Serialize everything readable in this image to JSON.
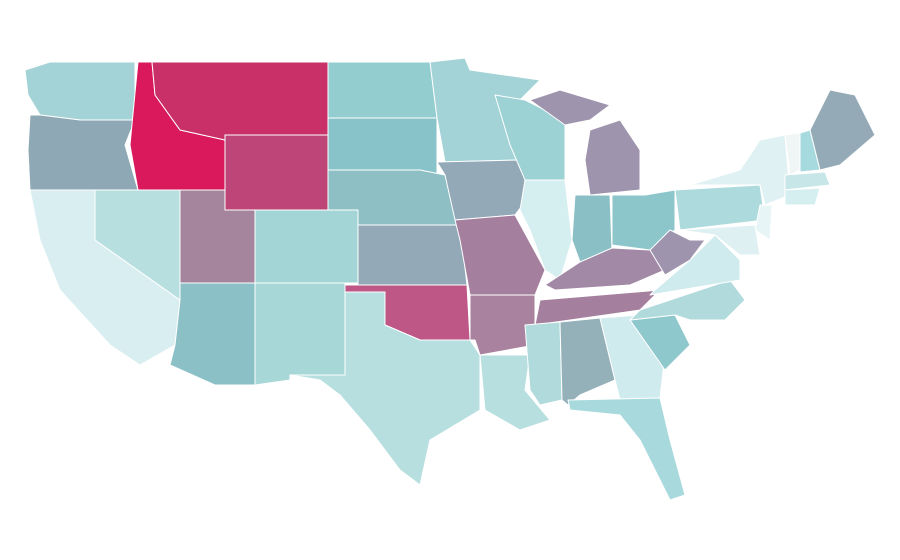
{
  "map": {
    "regions": [
      {
        "color": "#a3d3d6"
      },
      {
        "color": "#8fa8b5"
      },
      {
        "color": "#d8eef0"
      },
      {
        "color": "#b8dfe0"
      },
      {
        "color": "#d9195b"
      },
      {
        "color": "#c93068"
      },
      {
        "color": "#bd4577"
      },
      {
        "color": "#a5849e"
      },
      {
        "color": "#a3d4d6"
      },
      {
        "color": "#8ac0c6"
      },
      {
        "color": "#a8d7d8"
      },
      {
        "color": "#93cdd0"
      },
      {
        "color": "#88c3ca"
      },
      {
        "color": "#8dbfc4"
      },
      {
        "color": "#94a9b7"
      },
      {
        "color": "#be5686"
      },
      {
        "color": "#b8dfe0"
      },
      {
        "color": "#a3d3d6"
      },
      {
        "color": "#94a9b7"
      },
      {
        "color": "#a47f9e"
      },
      {
        "color": "#a8829e"
      },
      {
        "color": "#b8dfe0"
      },
      {
        "color": "#9dd2d5"
      },
      {
        "color": "#d5eef0"
      },
      {
        "color": "#9e94ad"
      },
      {
        "color": "#8bbfc6"
      },
      {
        "color": "#8cc6cb"
      },
      {
        "color": "#a28aa6"
      },
      {
        "color": "#a47f9e"
      },
      {
        "color": "#b0dadc"
      },
      {
        "color": "#94b0b8"
      },
      {
        "color": "#d0ebee"
      },
      {
        "color": "#a8d9dc"
      },
      {
        "color": "#8ec7cc"
      },
      {
        "color": "#b0dadc"
      },
      {
        "color": "#d0ebee"
      },
      {
        "color": "#9e94ad"
      },
      {
        "color": "#addadc"
      },
      {
        "color": "#e0f1f3"
      },
      {
        "color": "#e8f5f6"
      },
      {
        "color": "#dff0f2"
      },
      {
        "color": "#f0f5f6"
      },
      {
        "color": "#a7dadf"
      },
      {
        "color": "#94aab6"
      },
      {
        "color": "#c6e6e8"
      },
      {
        "color": "#d5eef0"
      }
    ]
  }
}
